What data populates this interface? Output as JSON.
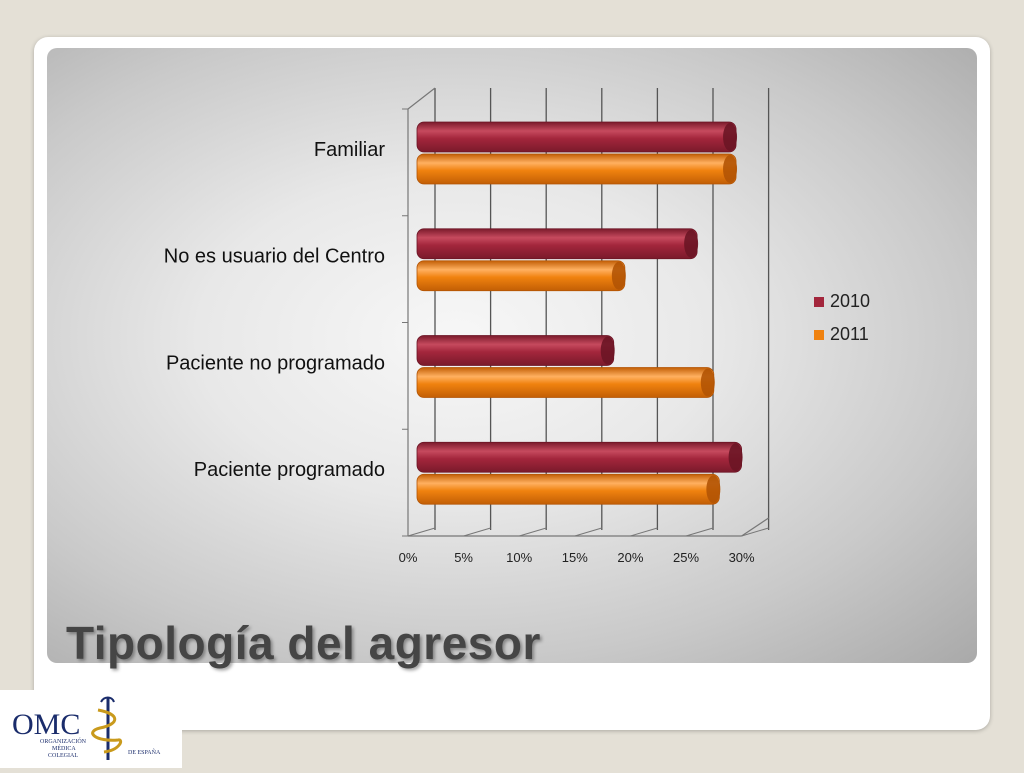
{
  "slide": {
    "title": "Tipología del agresor"
  },
  "logo": {
    "main": "OMC",
    "line1": "ORGANIZACIÓN",
    "line2": "MÉDICA",
    "line3": "COLEGIAL",
    "line4": "DE ESPAÑA"
  },
  "colors": {
    "series_2010": "#a3263c",
    "series_2011": "#f0820f"
  },
  "chart_data": {
    "type": "bar",
    "orientation": "horizontal",
    "style": "3d-cylinder",
    "categories": [
      "Familiar",
      "No es usuario del Centro",
      "Paciente no programado",
      "Paciente programado"
    ],
    "series": [
      {
        "name": "2010",
        "values": [
          29.5,
          26,
          18.5,
          30
        ]
      },
      {
        "name": "2011",
        "values": [
          29.5,
          19.5,
          27.5,
          28
        ]
      }
    ],
    "x_ticks": [
      "0%",
      "5%",
      "10%",
      "15%",
      "20%",
      "25%",
      "30%"
    ],
    "xlim": [
      0,
      30
    ],
    "grid": true,
    "legend_position": "right"
  }
}
